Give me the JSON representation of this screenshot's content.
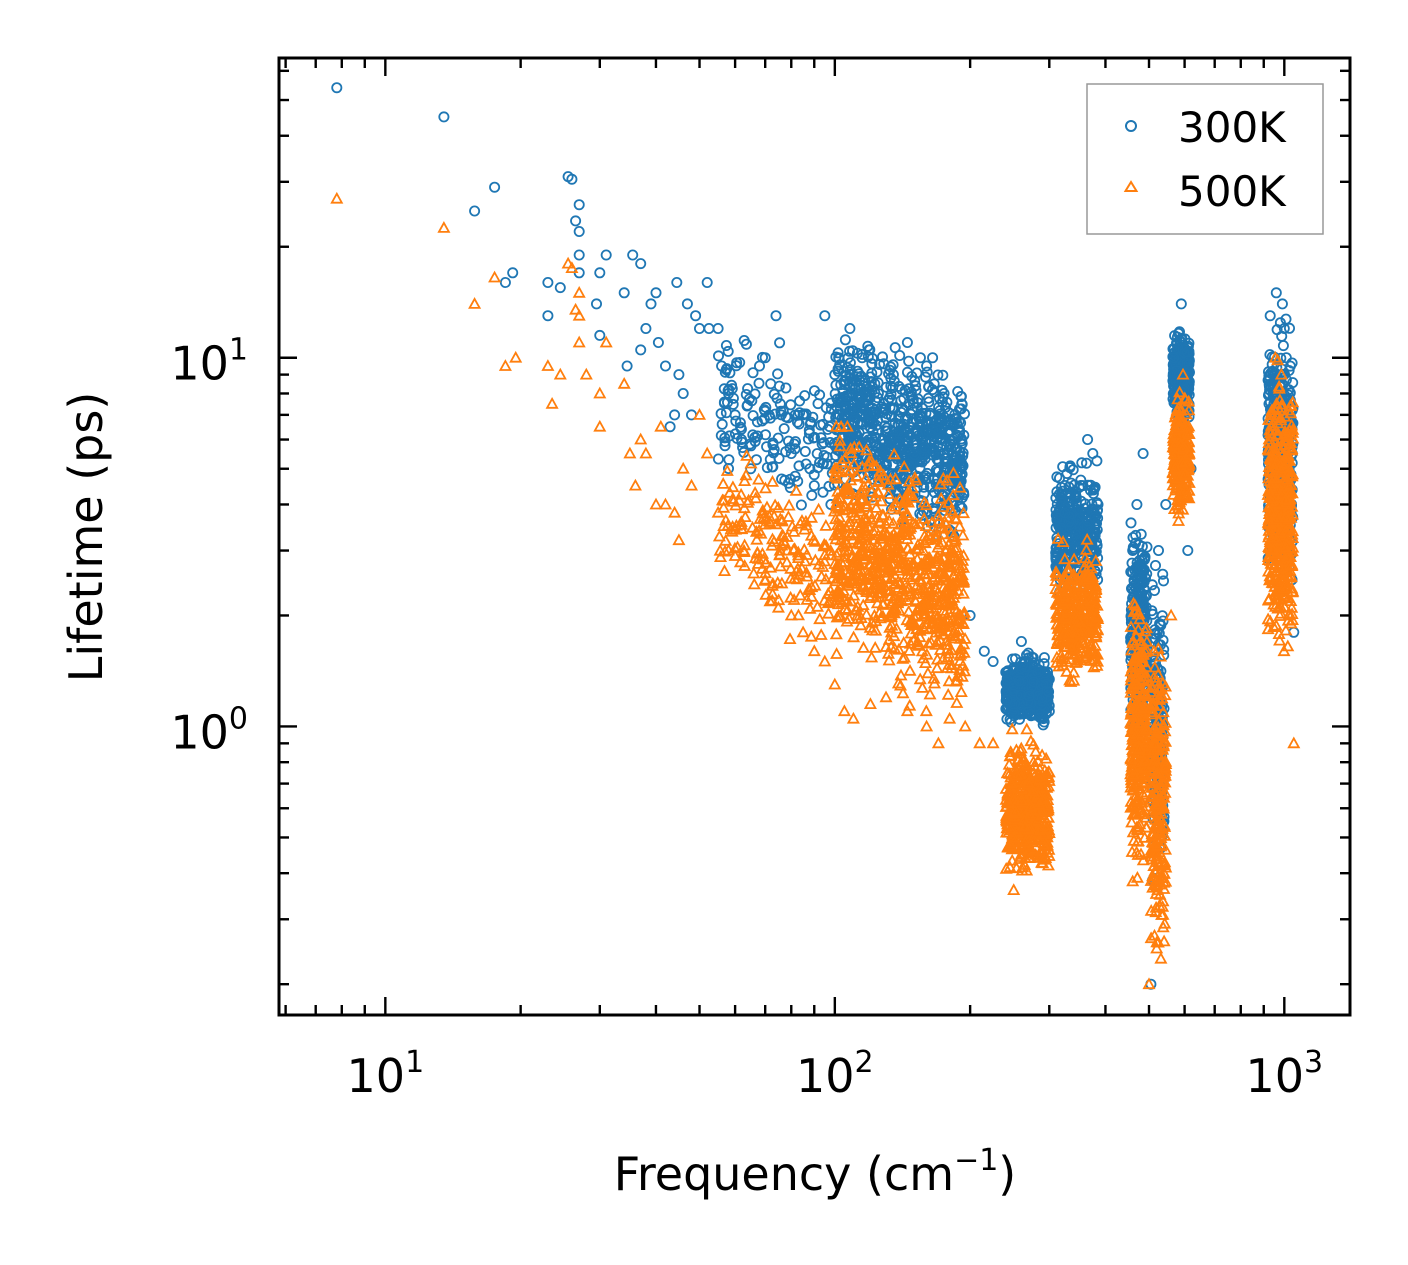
{
  "chart_data": {
    "type": "scatter",
    "title": "",
    "xlabel": "Frequency (cm",
    "xlabel_sup": "−1",
    "xlabel_end": ")",
    "ylabel": "Lifetime (ps)",
    "x_scale": "log",
    "y_scale": "log",
    "xlim": [
      5.8,
      1400
    ],
    "ylim": [
      0.165,
      65
    ],
    "grid": false,
    "legend_position": "top-right",
    "x_tick_labels": [
      {
        "base": "10",
        "exp": "1",
        "value": 10
      },
      {
        "base": "10",
        "exp": "2",
        "value": 100
      },
      {
        "base": "10",
        "exp": "3",
        "value": 1000
      }
    ],
    "y_tick_labels": [
      {
        "base": "10",
        "exp": "0",
        "value": 1
      },
      {
        "base": "10",
        "exp": "1",
        "value": 10
      }
    ],
    "series": [
      {
        "name": "300K",
        "marker": "circle",
        "color": "#1f77b4",
        "points": [
          [
            7.8,
            54
          ],
          [
            13.5,
            45
          ],
          [
            15.8,
            25
          ],
          [
            17.5,
            29
          ],
          [
            18.5,
            16
          ],
          [
            19.2,
            17
          ],
          [
            23,
            16
          ],
          [
            23,
            13
          ],
          [
            24.5,
            15.5
          ],
          [
            25.5,
            31
          ],
          [
            26,
            30.5
          ],
          [
            26.5,
            23.5
          ],
          [
            27,
            26
          ],
          [
            27,
            22
          ],
          [
            27,
            19
          ],
          [
            27,
            17
          ],
          [
            29.5,
            14
          ],
          [
            30,
            17
          ],
          [
            30,
            11.5
          ],
          [
            31,
            19
          ],
          [
            34,
            15
          ],
          [
            34.5,
            9.5
          ],
          [
            35.5,
            19
          ],
          [
            37,
            18
          ],
          [
            37,
            10.5
          ],
          [
            38,
            12
          ],
          [
            39,
            14
          ],
          [
            40,
            15
          ],
          [
            40.5,
            11
          ],
          [
            42,
            9.5
          ],
          [
            43,
            6.5
          ],
          [
            44,
            7
          ],
          [
            44.5,
            16
          ],
          [
            45,
            9
          ],
          [
            46,
            8
          ],
          [
            47,
            14
          ],
          [
            48,
            7
          ],
          [
            49,
            13
          ],
          [
            50,
            12
          ],
          [
            52,
            16
          ],
          [
            52.5,
            12
          ],
          [
            55,
            12
          ],
          [
            56,
            9.5
          ],
          [
            58,
            8
          ],
          [
            60,
            7
          ],
          [
            62,
            6
          ],
          [
            65,
            5
          ],
          [
            68,
            9.5
          ],
          [
            70,
            10
          ],
          [
            72,
            8.5
          ],
          [
            74,
            13
          ],
          [
            76,
            7
          ],
          [
            80,
            5.5
          ],
          [
            85,
            7
          ],
          [
            88,
            5
          ],
          [
            90,
            4.5
          ],
          [
            95,
            13
          ],
          [
            98,
            4
          ],
          [
            100,
            9
          ],
          [
            102,
            10
          ],
          [
            108,
            12
          ],
          [
            115,
            10
          ],
          [
            125,
            8
          ],
          [
            135,
            9
          ],
          [
            145,
            11
          ],
          [
            155,
            10
          ],
          [
            160,
            9.5
          ],
          [
            165,
            10
          ],
          [
            175,
            8
          ],
          [
            185,
            5
          ],
          [
            190,
            4.5
          ],
          [
            200,
            2
          ],
          [
            215,
            1.6
          ],
          [
            225,
            1.5
          ],
          [
            250,
            1.3
          ],
          [
            260,
            1.7
          ],
          [
            280,
            1.4
          ],
          [
            300,
            1.1
          ],
          [
            315,
            3.5
          ],
          [
            330,
            3.8
          ],
          [
            350,
            3.5
          ],
          [
            365,
            6
          ],
          [
            375,
            5.5
          ],
          [
            385,
            4
          ],
          [
            460,
            3
          ],
          [
            470,
            4
          ],
          [
            485,
            5.5
          ],
          [
            490,
            2
          ],
          [
            505,
            0.2
          ],
          [
            525,
            3
          ],
          [
            545,
            4
          ],
          [
            575,
            9
          ],
          [
            590,
            14
          ],
          [
            600,
            10
          ],
          [
            610,
            3
          ],
          [
            620,
            5
          ],
          [
            930,
            13
          ],
          [
            960,
            15
          ],
          [
            990,
            14
          ],
          [
            1000,
            12
          ],
          [
            1010,
            10
          ],
          [
            1025,
            5
          ],
          [
            1040,
            2.5
          ],
          [
            1050,
            1.8
          ]
        ],
        "clusters": [
          {
            "x": [
              100,
              195
            ],
            "y": [
              3.2,
              11.5
            ],
            "n": 750
          },
          {
            "x": [
              55,
              100
            ],
            "y": [
              3.5,
              12
            ],
            "n": 160
          },
          {
            "x": [
              240,
              300
            ],
            "y": [
              0.95,
              1.65
            ],
            "n": 420
          },
          {
            "x": [
              310,
              385
            ],
            "y": [
              2.0,
              5.8
            ],
            "n": 320
          },
          {
            "x": [
              455,
              495
            ],
            "y": [
              0.8,
              4.2
            ],
            "n": 260
          },
          {
            "x": [
              505,
              540
            ],
            "y": [
              0.3,
              3.2
            ],
            "n": 180
          },
          {
            "x": [
              565,
              615
            ],
            "y": [
              6.2,
              13
            ],
            "n": 260
          },
          {
            "x": [
              920,
              1045
            ],
            "y": [
              2.0,
              14.5
            ],
            "n": 420
          }
        ]
      },
      {
        "name": "500K",
        "marker": "triangle",
        "color": "#ff7f0e",
        "points": [
          [
            7.8,
            27
          ],
          [
            13.5,
            22.5
          ],
          [
            15.8,
            14
          ],
          [
            17.5,
            16.5
          ],
          [
            18.5,
            9.5
          ],
          [
            19.5,
            10
          ],
          [
            23,
            9.5
          ],
          [
            23.5,
            7.5
          ],
          [
            24.5,
            9
          ],
          [
            25.5,
            18
          ],
          [
            26,
            17.5
          ],
          [
            26.5,
            13.5
          ],
          [
            27,
            15
          ],
          [
            27,
            13
          ],
          [
            27,
            11
          ],
          [
            28,
            9
          ],
          [
            30,
            8
          ],
          [
            30,
            6.5
          ],
          [
            31,
            11
          ],
          [
            34,
            8.5
          ],
          [
            35,
            5.5
          ],
          [
            36,
            4.5
          ],
          [
            37,
            6
          ],
          [
            38,
            5.5
          ],
          [
            40,
            4
          ],
          [
            41,
            6.5
          ],
          [
            42,
            4
          ],
          [
            44,
            3.8
          ],
          [
            45,
            3.2
          ],
          [
            46,
            5
          ],
          [
            48,
            4.5
          ],
          [
            50,
            7
          ],
          [
            52,
            5.5
          ],
          [
            55,
            3.8
          ],
          [
            58,
            3
          ],
          [
            60,
            2.9
          ],
          [
            63,
            3.1
          ],
          [
            66,
            2.6
          ],
          [
            70,
            2.5
          ],
          [
            75,
            2.2
          ],
          [
            80,
            2
          ],
          [
            85,
            1.8
          ],
          [
            90,
            1.6
          ],
          [
            95,
            1.5
          ],
          [
            100,
            1.3
          ],
          [
            105,
            1.1
          ],
          [
            110,
            1.05
          ],
          [
            120,
            1.15
          ],
          [
            130,
            1.2
          ],
          [
            145,
            1.1
          ],
          [
            160,
            1.0
          ],
          [
            170,
            0.9
          ],
          [
            180,
            1.05
          ],
          [
            195,
            1.0
          ],
          [
            210,
            0.9
          ],
          [
            225,
            0.9
          ],
          [
            250,
            0.36
          ],
          [
            260,
            0.45
          ],
          [
            280,
            0.6
          ],
          [
            300,
            0.75
          ],
          [
            320,
            1.5
          ],
          [
            340,
            1.4
          ],
          [
            360,
            2.5
          ],
          [
            370,
            2.2
          ],
          [
            380,
            2.3
          ],
          [
            460,
            0.38
          ],
          [
            480,
            0.45
          ],
          [
            500,
            0.2
          ],
          [
            520,
            0.25
          ],
          [
            540,
            0.4
          ],
          [
            560,
            2
          ],
          [
            580,
            4
          ],
          [
            595,
            9
          ],
          [
            610,
            5
          ],
          [
            925,
            6
          ],
          [
            955,
            10
          ],
          [
            985,
            9
          ],
          [
            1005,
            5
          ],
          [
            1025,
            2
          ],
          [
            1050,
            0.9
          ]
        ],
        "clusters": [
          {
            "x": [
              100,
              195
            ],
            "y": [
              1.1,
              6.5
            ],
            "n": 820
          },
          {
            "x": [
              55,
              100
            ],
            "y": [
              1.6,
              6.0
            ],
            "n": 180
          },
          {
            "x": [
              240,
              300
            ],
            "y": [
              0.36,
              1.0
            ],
            "n": 460
          },
          {
            "x": [
              310,
              385
            ],
            "y": [
              1.2,
              3.4
            ],
            "n": 320
          },
          {
            "x": [
              455,
              495
            ],
            "y": [
              0.35,
              2.6
            ],
            "n": 300
          },
          {
            "x": [
              505,
              545
            ],
            "y": [
              0.18,
              2.2
            ],
            "n": 240
          },
          {
            "x": [
              565,
              615
            ],
            "y": [
              3.5,
              8.5
            ],
            "n": 240
          },
          {
            "x": [
              920,
              1045
            ],
            "y": [
              1.3,
              11
            ],
            "n": 460
          }
        ]
      }
    ]
  }
}
